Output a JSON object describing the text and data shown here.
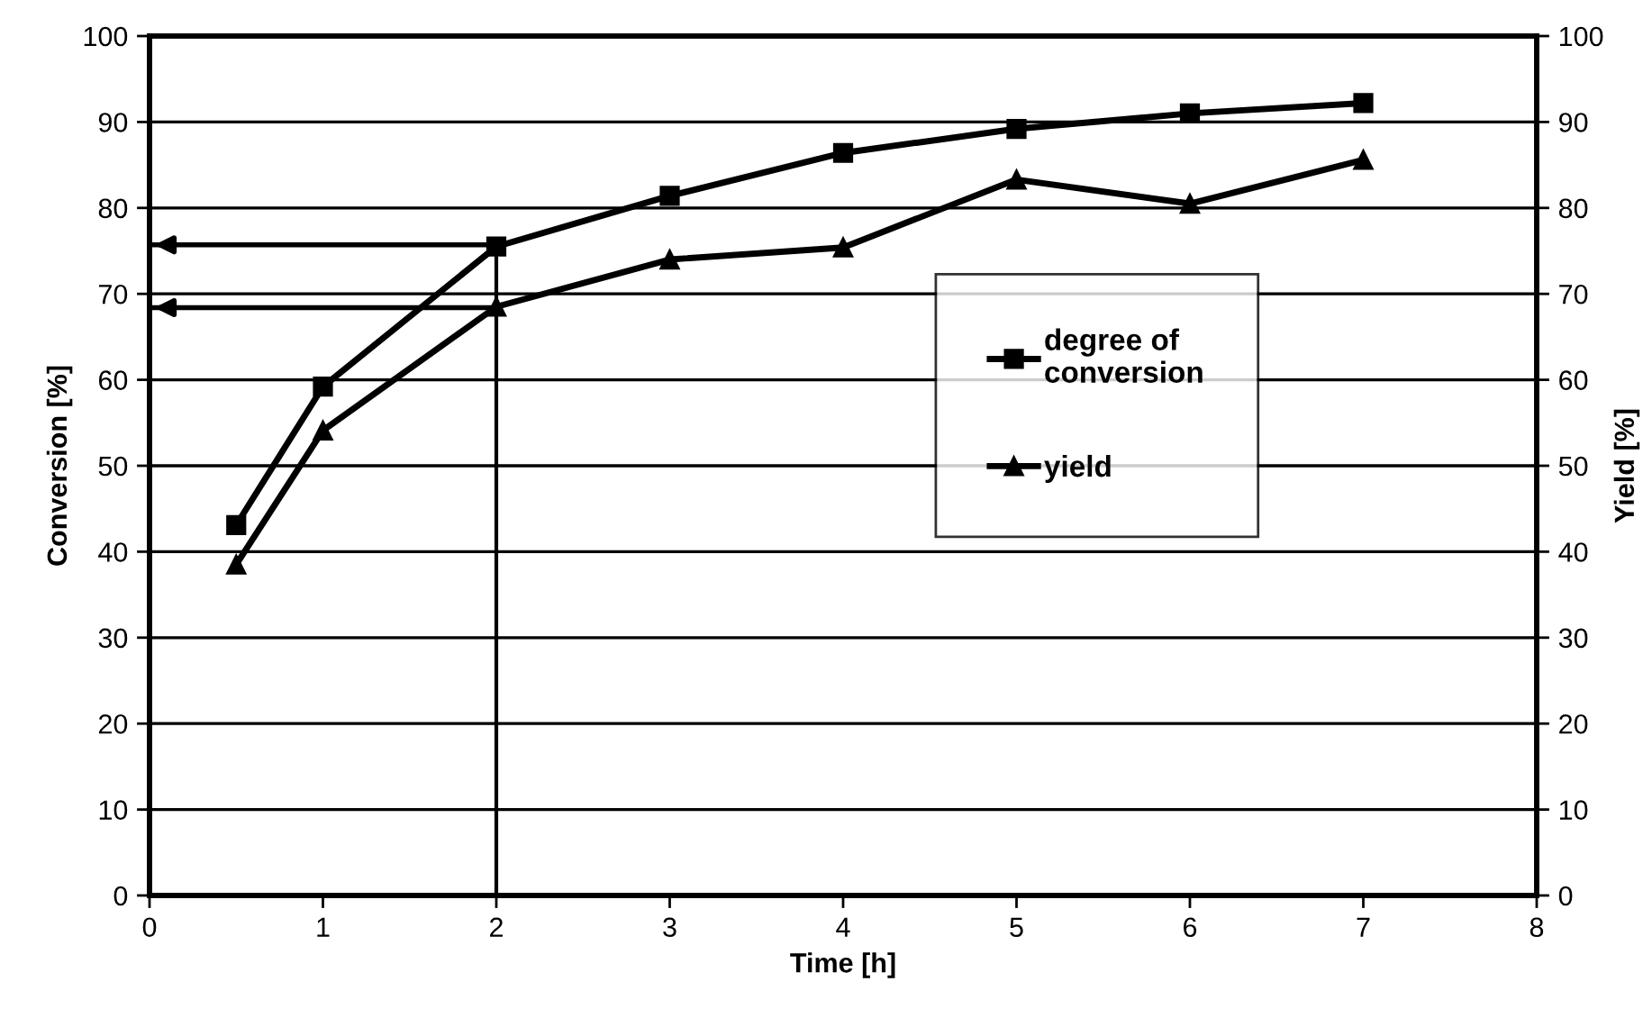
{
  "chart_data": {
    "type": "line",
    "xlabel": "Time [h]",
    "ylabel": "Conversion [%]",
    "y2label": "Yield [%]",
    "x": [
      0.5,
      1,
      2,
      3,
      4,
      5,
      6,
      7
    ],
    "series": [
      {
        "name": "degree of\nconversion",
        "color": "#000000",
        "marker": "square",
        "values": [
          43.1,
          59.2,
          75.5,
          81.4,
          86.4,
          89.2,
          91,
          92.2
        ]
      },
      {
        "name": "yield",
        "color": "#000000",
        "marker": "triangle",
        "values": [
          38.5,
          54.1,
          68.5,
          74,
          75.4,
          83.3,
          80.5,
          85.6
        ]
      }
    ],
    "xlim": [
      0,
      8
    ],
    "xticks": [
      0,
      1,
      2,
      3,
      4,
      5,
      6,
      7,
      8
    ],
    "ylim": [
      0,
      100
    ],
    "yticks": [
      0,
      10,
      20,
      30,
      40,
      50,
      60,
      70,
      80,
      90,
      100
    ],
    "y2lim": [
      0,
      100
    ],
    "y2ticks": [
      0,
      10,
      20,
      30,
      40,
      50,
      60,
      70,
      80,
      90,
      100
    ],
    "ref_lines": [
      {
        "axis": "y",
        "value": 75.7,
        "color": "#000000"
      },
      {
        "axis": "y",
        "value": 68.4,
        "color": "#000000"
      },
      {
        "axis": "x",
        "value": 2,
        "color": "#000000"
      }
    ],
    "grid": "y",
    "legend": "right",
    "line_style": "solid"
  }
}
